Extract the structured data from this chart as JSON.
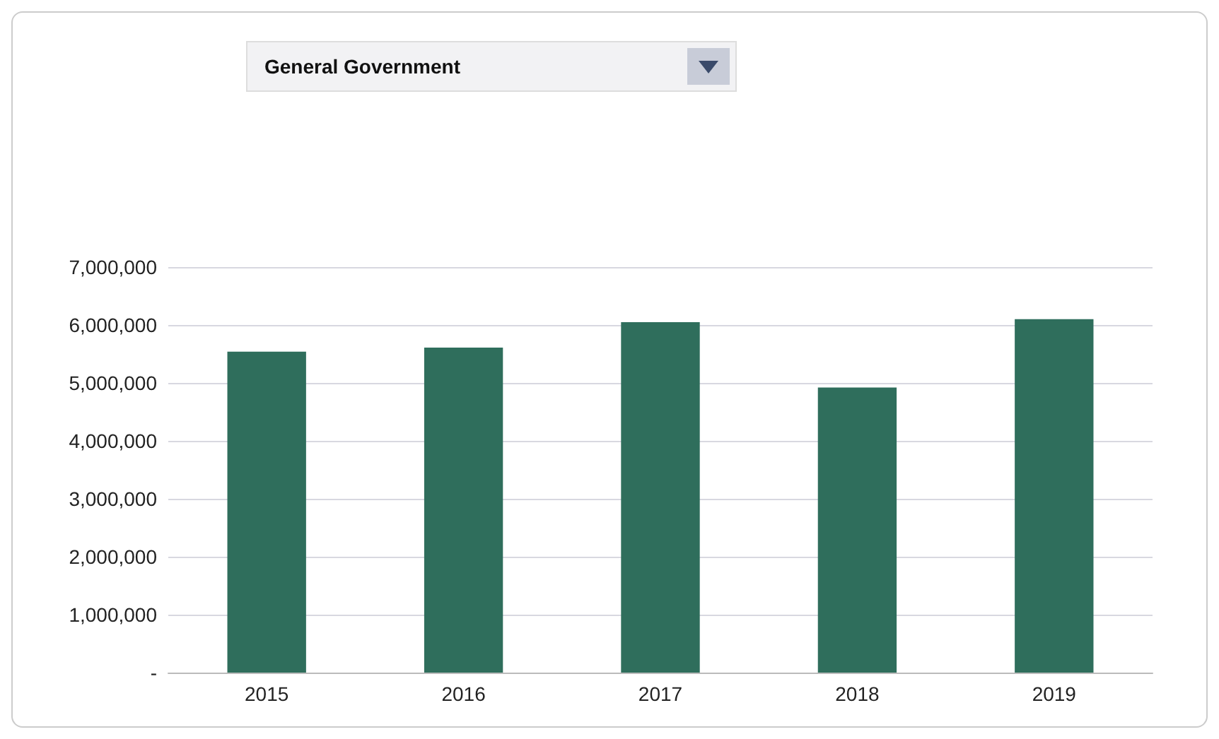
{
  "chart_data": {
    "type": "bar",
    "title": "General Government",
    "categories": [
      "2015",
      "2016",
      "2017",
      "2018",
      "2019"
    ],
    "values": [
      5540000,
      5610000,
      6050000,
      4920000,
      6100000
    ],
    "color": "#2f6e5c",
    "ylim": [
      0,
      7000000
    ],
    "yticks": [
      {
        "value": 0,
        "label": "-"
      },
      {
        "value": 1000000,
        "label": "1,000,000"
      },
      {
        "value": 2000000,
        "label": "2,000,000"
      },
      {
        "value": 3000000,
        "label": "3,000,000"
      },
      {
        "value": 4000000,
        "label": "4,000,000"
      },
      {
        "value": 5000000,
        "label": "5,000,000"
      },
      {
        "value": 6000000,
        "label": "6,000,000"
      },
      {
        "value": 7000000,
        "label": "7,000,000"
      }
    ],
    "grid": "y"
  }
}
